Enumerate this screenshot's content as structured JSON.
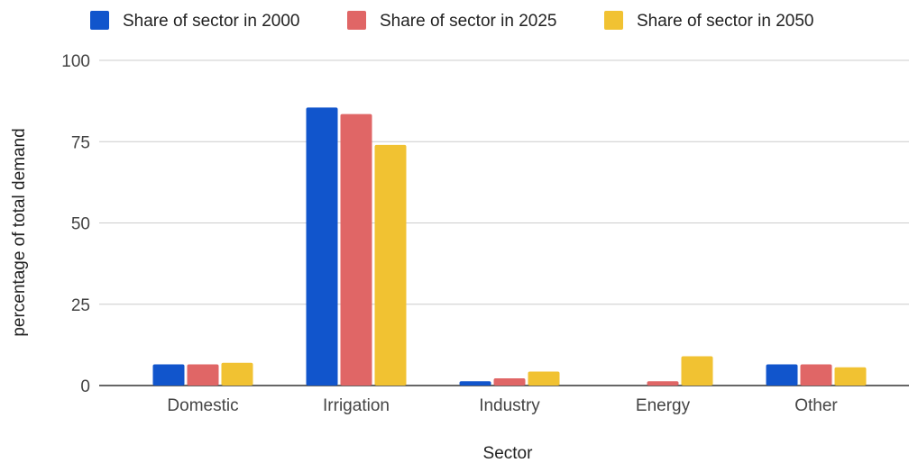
{
  "chart_data": {
    "type": "bar",
    "xlabel": "Sector",
    "ylabel": "percentage of total demand",
    "categories": [
      "Domestic",
      "Irrigation",
      "Industry",
      "Energy",
      "Other"
    ],
    "ylim": [
      0,
      100
    ],
    "yticks": [
      "0",
      "25",
      "50",
      "75",
      "100"
    ],
    "grid": true,
    "legend_position": "top",
    "series": [
      {
        "name": "Share of sector in 2000",
        "color": "#1155cc",
        "values": [
          6.5,
          85.5,
          1.3,
          0,
          6.5
        ]
      },
      {
        "name": "Share of sector in 2025",
        "color": "#e06666",
        "values": [
          6.5,
          83.5,
          2.2,
          1.3,
          6.5
        ]
      },
      {
        "name": "Share of sector in 2050",
        "color": "#f1c232",
        "values": [
          7.0,
          74.0,
          4.3,
          9.0,
          5.6
        ]
      }
    ]
  }
}
